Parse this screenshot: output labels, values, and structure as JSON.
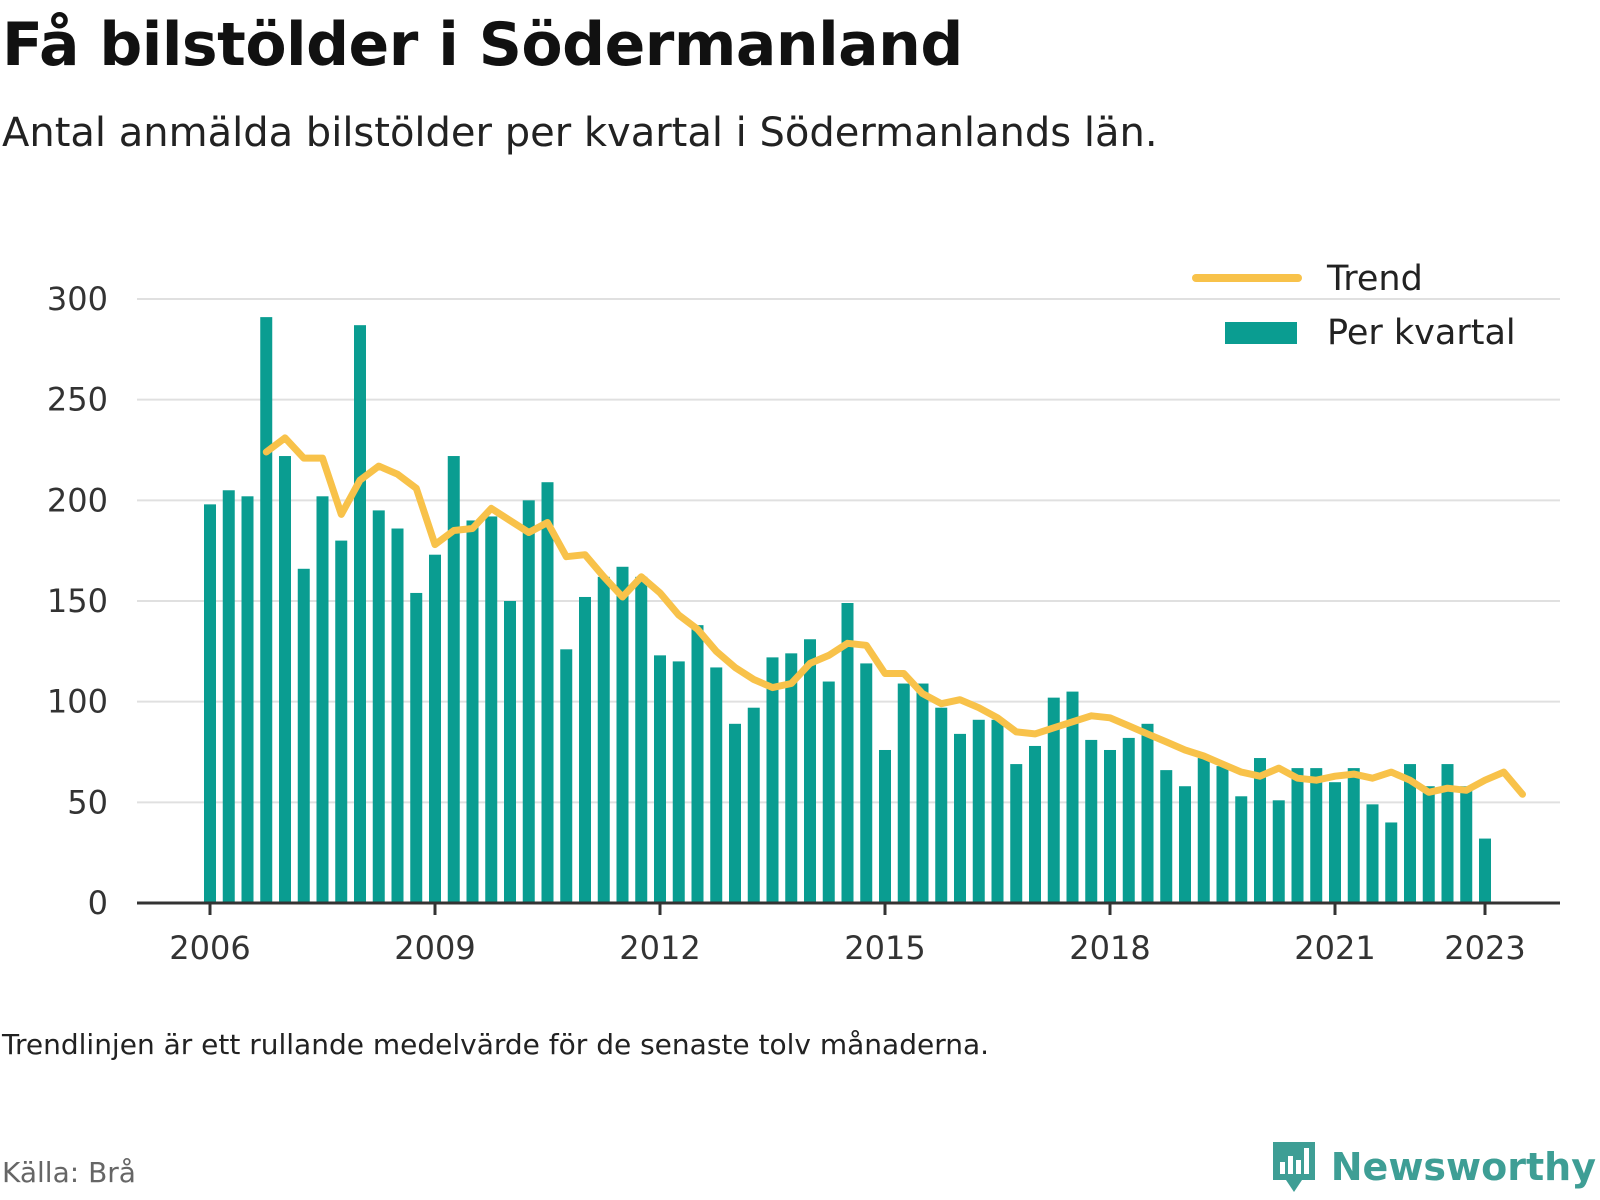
{
  "title": "Få bilstölder i Södermanland",
  "subtitle": "Antal anmälda bilstölder per kvartal i Södermanlands län.",
  "note": "Trendlinjen är ett rullande medelvärde för de senaste tolv månaderna.",
  "source": "Källa: Brå",
  "brand": "Newsworthy",
  "colors": {
    "bars": "#0a9d91",
    "trend": "#f8c24a",
    "grid": "#e0e0e0",
    "axis": "#333333",
    "brand": "#3e9e95"
  },
  "icons": {
    "brand_logo": "bar-chart-speech-bubble-icon"
  },
  "chart_data": {
    "type": "bar",
    "x_ticks": [
      "2006",
      "2009",
      "2012",
      "2015",
      "2018",
      "2021",
      "2023"
    ],
    "y_ticks": [
      "0",
      "50",
      "100",
      "150",
      "200",
      "250",
      "300"
    ],
    "ylim": [
      0,
      300
    ],
    "grid": true,
    "legend_placement": "top-right",
    "series": [
      {
        "name": "Per kvartal",
        "type": "bar",
        "start_year": 2006,
        "start_quarter": 1,
        "values": [
          198,
          205,
          202,
          291,
          222,
          166,
          202,
          180,
          287,
          195,
          186,
          154,
          173,
          222,
          190,
          192,
          150,
          200,
          209,
          126,
          152,
          162,
          167,
          162,
          123,
          120,
          138,
          117,
          89,
          97,
          122,
          124,
          131,
          110,
          149,
          119,
          76,
          109,
          109,
          97,
          84,
          91,
          91,
          69,
          78,
          102,
          105,
          81,
          76,
          82,
          89,
          66,
          58,
          72,
          68,
          53,
          72,
          51,
          67,
          67,
          60,
          67,
          49,
          40,
          69,
          58,
          69,
          58,
          32
        ]
      },
      {
        "name": "Trend",
        "type": "line",
        "start_year": 2006,
        "start_quarter": 4,
        "values": [
          224,
          231,
          221,
          221,
          193,
          210,
          217,
          213,
          206,
          178,
          185,
          186,
          196,
          190,
          184,
          189,
          172,
          173,
          162,
          152,
          162,
          154,
          143,
          136,
          125,
          117,
          111,
          107,
          109,
          119,
          123,
          129,
          128,
          114,
          114,
          104,
          99,
          101,
          97,
          92,
          85,
          84,
          87,
          90,
          93,
          92,
          88,
          84,
          80,
          76,
          73,
          69,
          65,
          63,
          67,
          62,
          61,
          63,
          64,
          62,
          65,
          61,
          55,
          57,
          56,
          61,
          65,
          54
        ]
      }
    ]
  }
}
